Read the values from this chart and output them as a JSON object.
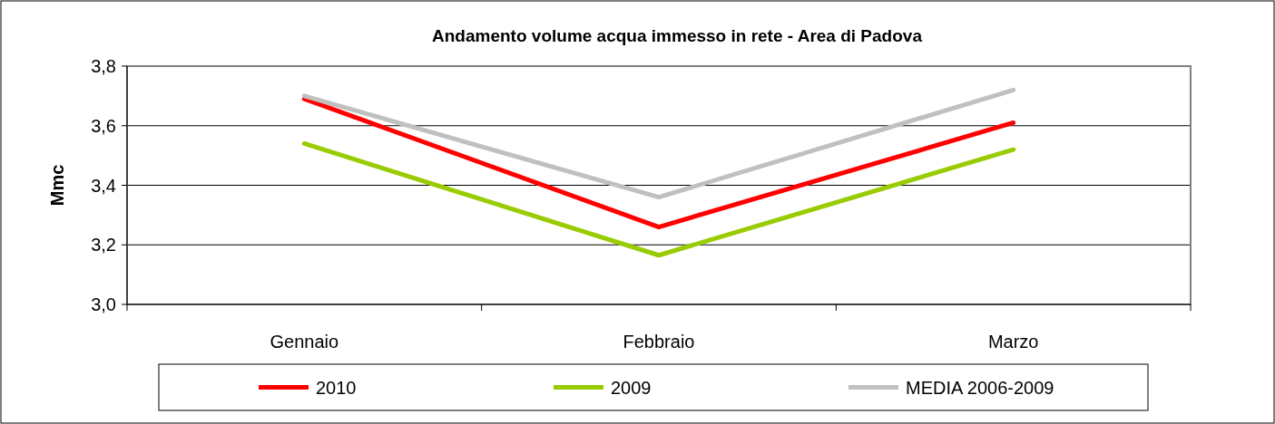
{
  "chart_data": {
    "type": "line",
    "title": "Andamento volume acqua immesso in rete - Area di Padova",
    "ylabel": "Mmc",
    "categories": [
      "Gennaio",
      "Febbraio",
      "Marzo"
    ],
    "series": [
      {
        "name": "2010",
        "color": "#ff0000",
        "values": [
          3.69,
          3.26,
          3.61
        ]
      },
      {
        "name": "2009",
        "color": "#99cc00",
        "values": [
          3.54,
          3.165,
          3.52
        ]
      },
      {
        "name": "MEDIA 2006-2009",
        "color": "#c0c0c0",
        "values": [
          3.7,
          3.36,
          3.72
        ]
      }
    ],
    "ylim": [
      3.0,
      3.8
    ],
    "yticks": [
      {
        "value": 3.0,
        "label": "3,0"
      },
      {
        "value": 3.2,
        "label": "3,2"
      },
      {
        "value": 3.4,
        "label": "3,4"
      },
      {
        "value": 3.6,
        "label": "3,6"
      },
      {
        "value": 3.8,
        "label": "3,8"
      }
    ],
    "grid": "y",
    "legend": "bottom",
    "marker": "none",
    "line_style": "solid"
  }
}
